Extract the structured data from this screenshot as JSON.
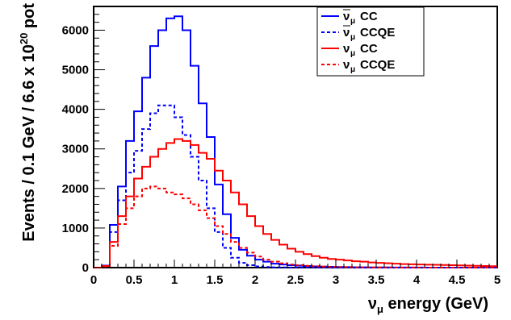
{
  "chart_data": {
    "type": "histogram",
    "title": "",
    "xlabel": {
      "symbol": "ν",
      "sub": "μ",
      "text": " energy (GeV)"
    },
    "ylabel": {
      "text": "Events / 0.1 GeV / 6.6 x 10",
      "sup": "20",
      "suffix": " pot"
    },
    "xlim": [
      0,
      5
    ],
    "ylim": [
      0,
      6600
    ],
    "bin_width": 0.1,
    "x_ticks": [
      0,
      0.5,
      1,
      1.5,
      2,
      2.5,
      3,
      3.5,
      4,
      4.5,
      5
    ],
    "x_tick_labels": [
      "0",
      "0.5",
      "1",
      "1.5",
      "2",
      "2.5",
      "3",
      "3.5",
      "4",
      "4.5",
      "5"
    ],
    "y_ticks": [
      0,
      1000,
      2000,
      3000,
      4000,
      5000,
      6000
    ],
    "y_tick_labels": [
      "0",
      "1000",
      "2000",
      "3000",
      "4000",
      "5000",
      "6000"
    ],
    "grid": false,
    "legend_position": "top-right",
    "series": [
      {
        "name": "CC",
        "name_symbol": "ν",
        "name_bar": true,
        "name_sub": "μ",
        "color": "#0000ff",
        "dash": "solid",
        "values": [
          0,
          50,
          1080,
          2050,
          3200,
          3950,
          4800,
          5600,
          6000,
          6300,
          6350,
          6000,
          5100,
          4150,
          3300,
          2100,
          1350,
          750,
          450,
          300,
          200,
          150,
          100,
          80,
          60,
          50,
          40,
          30,
          25,
          20,
          15,
          12,
          10,
          8,
          6,
          5,
          4,
          3,
          3,
          2,
          2,
          1,
          1,
          1,
          1,
          1,
          1,
          1,
          1,
          1
        ]
      },
      {
        "name": "CCQE",
        "name_symbol": "ν",
        "name_bar": true,
        "name_sub": "μ",
        "color": "#0000ff",
        "dash": "dashed",
        "values": [
          0,
          50,
          900,
          1700,
          2400,
          2950,
          3500,
          3900,
          4100,
          4100,
          3800,
          3350,
          2800,
          2200,
          1500,
          900,
          500,
          250,
          120,
          60,
          30,
          15,
          8,
          5,
          3,
          2,
          1,
          1,
          1,
          1,
          0,
          0,
          0,
          0,
          0,
          0,
          0,
          0,
          0,
          0,
          0,
          0,
          0,
          0,
          0,
          0,
          0,
          0,
          0,
          0
        ]
      },
      {
        "name": "CC",
        "name_symbol": "ν",
        "name_bar": false,
        "name_sub": "μ",
        "color": "#ff0000",
        "dash": "solid",
        "values": [
          0,
          40,
          650,
          1300,
          1800,
          2250,
          2550,
          2800,
          3000,
          3150,
          3250,
          3200,
          3100,
          2900,
          2750,
          2450,
          2200,
          1900,
          1600,
          1300,
          1050,
          850,
          700,
          580,
          480,
          400,
          340,
          290,
          250,
          220,
          200,
          180,
          160,
          150,
          130,
          120,
          110,
          100,
          90,
          85,
          80,
          75,
          70,
          65,
          60,
          55,
          50,
          45,
          40,
          35
        ]
      },
      {
        "name": "CCQE",
        "name_symbol": "ν",
        "name_bar": false,
        "name_sub": "μ",
        "color": "#ff0000",
        "dash": "dashed",
        "values": [
          0,
          30,
          550,
          1100,
          1500,
          1800,
          2000,
          2050,
          2000,
          1900,
          1850,
          1750,
          1600,
          1450,
          1250,
          1050,
          850,
          650,
          500,
          380,
          280,
          200,
          150,
          110,
          80,
          60,
          45,
          35,
          25,
          20,
          15,
          12,
          10,
          8,
          6,
          5,
          4,
          3,
          2,
          2,
          1,
          1,
          1,
          1,
          0,
          0,
          0,
          0,
          0,
          0
        ]
      }
    ]
  }
}
